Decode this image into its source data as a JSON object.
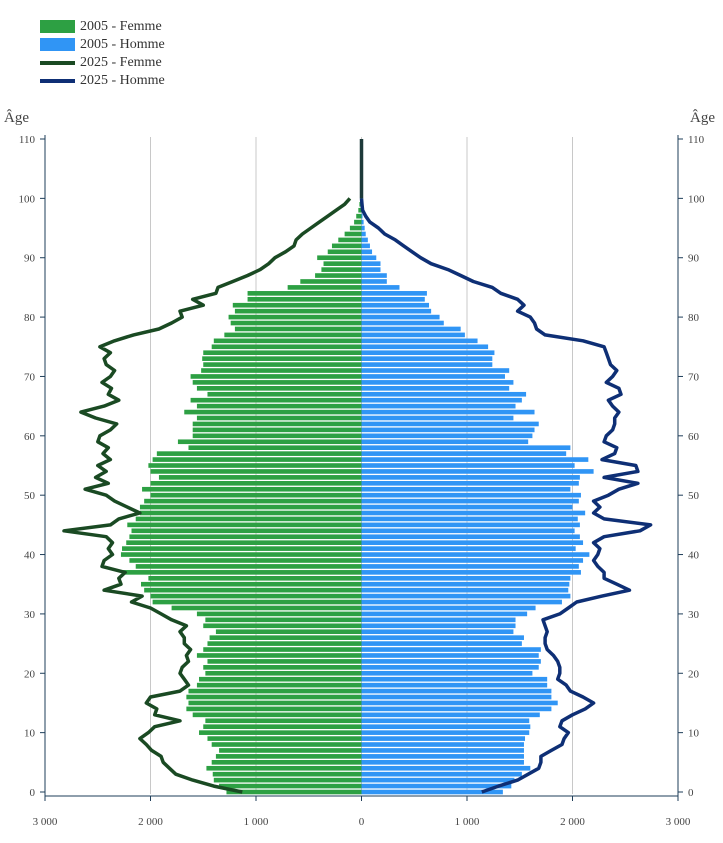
{
  "colors": {
    "femme_2005": "#2da043",
    "homme_2005": "#3095f5",
    "femme_2025": "#1a4a23",
    "homme_2025": "#0e2f75",
    "axis": "#1e3d59",
    "grid": "#c8c8c8"
  },
  "chart_data": {
    "type": "bar",
    "orientation": "horizontal-pyramid",
    "y_axis_label": "Âge",
    "ylim": [
      0,
      110
    ],
    "y_ticks": [
      0,
      10,
      20,
      30,
      40,
      50,
      60,
      70,
      80,
      90,
      100,
      110
    ],
    "xlim": [
      -3000,
      3000
    ],
    "x_ticks": [
      -3000,
      -2000,
      -1000,
      0,
      1000,
      2000,
      3000
    ],
    "x_tick_labels": [
      "3 000",
      "2 000",
      "1 000",
      "0",
      "1 000",
      "2 000",
      "3 000"
    ],
    "legend_position": "top-left",
    "legend": [
      "2005 - Femme",
      "2005 - Homme",
      "2025 - Femme",
      "2025 - Homme"
    ],
    "ages": [
      0,
      1,
      2,
      3,
      4,
      5,
      6,
      7,
      8,
      9,
      10,
      11,
      12,
      13,
      14,
      15,
      16,
      17,
      18,
      19,
      20,
      21,
      22,
      23,
      24,
      25,
      26,
      27,
      28,
      29,
      30,
      31,
      32,
      33,
      34,
      35,
      36,
      37,
      38,
      39,
      40,
      41,
      42,
      43,
      44,
      45,
      46,
      47,
      48,
      49,
      50,
      51,
      52,
      53,
      54,
      55,
      56,
      57,
      58,
      59,
      60,
      61,
      62,
      63,
      64,
      65,
      66,
      67,
      68,
      69,
      70,
      71,
      72,
      73,
      74,
      75,
      76,
      77,
      78,
      79,
      80,
      81,
      82,
      83,
      84,
      85,
      86,
      87,
      88,
      89,
      90,
      91,
      92,
      93,
      94,
      95,
      96,
      97,
      98,
      99,
      100
    ],
    "series": [
      {
        "name": "2005 - Femme",
        "kind": "bar",
        "values": [
          1280,
          1350,
          1400,
          1410,
          1470,
          1420,
          1380,
          1350,
          1420,
          1460,
          1540,
          1500,
          1480,
          1600,
          1660,
          1640,
          1660,
          1640,
          1560,
          1540,
          1480,
          1500,
          1460,
          1560,
          1500,
          1460,
          1440,
          1380,
          1500,
          1480,
          1560,
          1800,
          1980,
          2000,
          2060,
          2090,
          2020,
          2260,
          2140,
          2200,
          2280,
          2270,
          2230,
          2200,
          2180,
          2220,
          2140,
          2100,
          2100,
          2060,
          2000,
          2080,
          2000,
          1920,
          2000,
          2020,
          1980,
          1940,
          1640,
          1740,
          1600,
          1600,
          1600,
          1560,
          1680,
          1560,
          1620,
          1460,
          1560,
          1600,
          1620,
          1520,
          1500,
          1510,
          1500,
          1420,
          1400,
          1300,
          1200,
          1240,
          1260,
          1200,
          1220,
          1080,
          1080,
          700,
          580,
          440,
          380,
          360,
          420,
          320,
          280,
          220,
          160,
          110,
          70,
          50,
          30,
          20,
          10
        ]
      },
      {
        "name": "2005 - Homme",
        "kind": "bar",
        "values": [
          1340,
          1420,
          1450,
          1520,
          1600,
          1540,
          1540,
          1540,
          1540,
          1550,
          1590,
          1600,
          1590,
          1690,
          1800,
          1860,
          1800,
          1800,
          1760,
          1760,
          1620,
          1680,
          1700,
          1680,
          1700,
          1520,
          1540,
          1440,
          1460,
          1460,
          1570,
          1650,
          1900,
          1980,
          1960,
          1970,
          1980,
          2080,
          2060,
          2100,
          2160,
          2030,
          2100,
          2070,
          2020,
          2070,
          2050,
          2120,
          2000,
          2060,
          2080,
          1980,
          2060,
          2070,
          2200,
          2020,
          2150,
          1940,
          1980,
          1580,
          1620,
          1640,
          1680,
          1440,
          1640,
          1460,
          1520,
          1560,
          1400,
          1440,
          1360,
          1400,
          1240,
          1240,
          1260,
          1200,
          1100,
          980,
          940,
          780,
          740,
          660,
          640,
          600,
          620,
          360,
          240,
          240,
          180,
          180,
          140,
          100,
          80,
          60,
          40,
          30,
          20,
          10,
          10,
          5,
          5
        ]
      },
      {
        "name": "2025 - Femme",
        "kind": "line",
        "values": [
          1130,
          1400,
          1600,
          1760,
          1820,
          1880,
          1900,
          1990,
          2040,
          2100,
          2020,
          1960,
          1720,
          1960,
          1940,
          2040,
          2000,
          1720,
          1640,
          1680,
          1720,
          1700,
          1640,
          1660,
          1620,
          1680,
          1680,
          1720,
          1660,
          1800,
          1900,
          2000,
          2180,
          2080,
          2440,
          2280,
          2300,
          2240,
          2460,
          2440,
          2360,
          2400,
          2360,
          2420,
          2820,
          2380,
          2300,
          2100,
          2220,
          2340,
          2420,
          2620,
          2400,
          2520,
          2420,
          2500,
          2380,
          2450,
          2400,
          2500,
          2480,
          2380,
          2320,
          2520,
          2660,
          2440,
          2300,
          2400,
          2370,
          2460,
          2380,
          2340,
          2420,
          2440,
          2380,
          2480,
          2340,
          2160,
          1920,
          1800,
          1700,
          1720,
          1500,
          1600,
          1380,
          1360,
          1220,
          1080,
          960,
          880,
          820,
          720,
          640,
          620,
          560,
          480,
          400,
          320,
          240,
          160,
          110
        ]
      },
      {
        "name": "2025 - Homme",
        "kind": "line",
        "values": [
          1140,
          1300,
          1480,
          1580,
          1680,
          1700,
          1700,
          1800,
          1900,
          1920,
          1960,
          1880,
          1900,
          2000,
          2120,
          2200,
          2100,
          1980,
          1940,
          1860,
          1880,
          1880,
          1860,
          1820,
          1760,
          1740,
          1740,
          1760,
          1740,
          1720,
          1880,
          1960,
          2040,
          2280,
          2540,
          2420,
          2300,
          2300,
          2240,
          2200,
          2240,
          2260,
          2200,
          2300,
          2640,
          2740,
          2300,
          2200,
          2260,
          2200,
          2340,
          2440,
          2620,
          2300,
          2620,
          2600,
          2280,
          2400,
          2420,
          2300,
          2320,
          2380,
          2400,
          2400,
          2440,
          2380,
          2340,
          2460,
          2440,
          2320,
          2380,
          2420,
          2360,
          2340,
          2320,
          2300,
          2100,
          1740,
          1660,
          1640,
          1600,
          1480,
          1540,
          1480,
          1320,
          1240,
          1060,
          940,
          820,
          660,
          560,
          480,
          400,
          320,
          220,
          160,
          80,
          40,
          10,
          5,
          0
        ]
      }
    ],
    "top_line": {
      "start_age": 100,
      "end_age": 110,
      "value": 0
    }
  }
}
